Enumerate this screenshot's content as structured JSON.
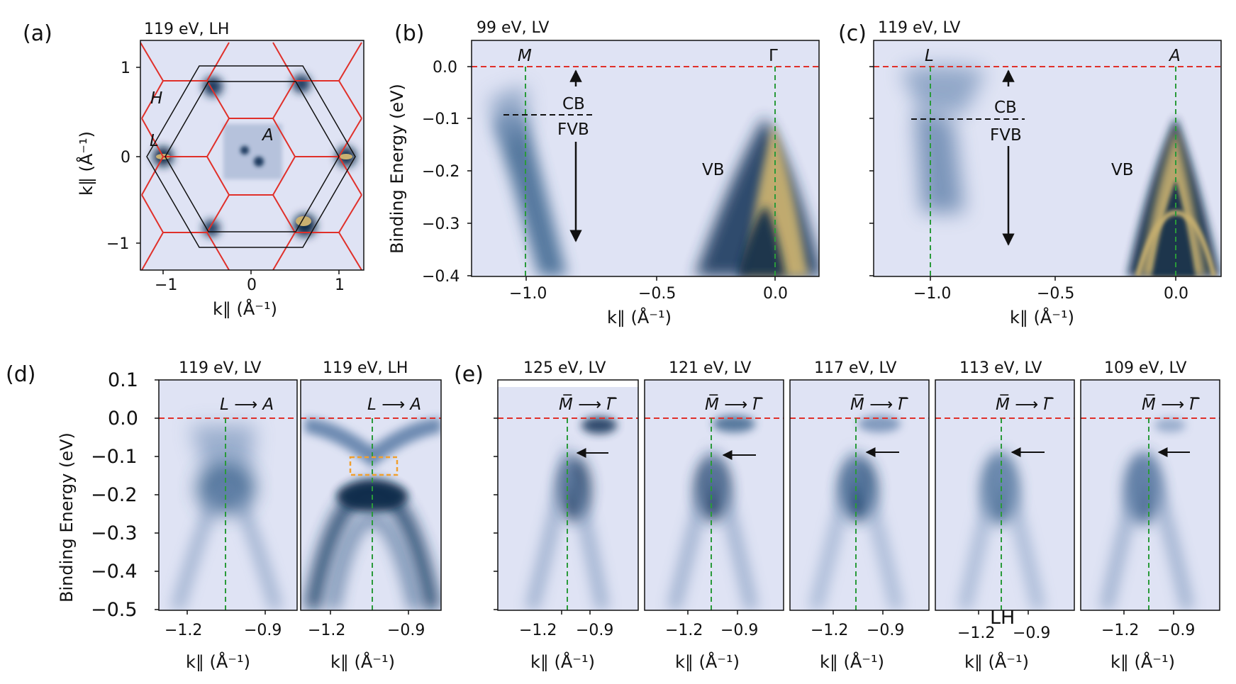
{
  "figure": {
    "panels": {
      "a": {
        "letter": "(a)",
        "title": "119 eV, LH",
        "xticks": [
          "−1",
          "0",
          "1"
        ],
        "yticks": [
          "1",
          "0",
          "−1"
        ],
        "xlabel": "k∥ (Å⁻¹)",
        "ylabel": "k∥ (Å⁻¹)",
        "labels": {
          "H": "H",
          "L": "L",
          "A": "A"
        }
      },
      "b": {
        "letter": "(b)",
        "title": "99 eV, LV",
        "xticks": [
          "−1.0",
          "−0.5",
          "0.0"
        ],
        "yticks": [
          "0.0",
          "−0.1",
          "−0.2",
          "−0.3",
          "−0.4"
        ],
        "xlabel": "k∥ (Å⁻¹)",
        "ylabel": "Binding Energy (eV)",
        "point_left": "M",
        "point_right": "Γ",
        "cb": "CB",
        "fvb": "FVB",
        "vb": "VB"
      },
      "c": {
        "letter": "(c)",
        "title": "119 eV, LV",
        "xticks": [
          "−1.0",
          "−0.5",
          "0.0"
        ],
        "xlabel": "k∥ (Å⁻¹)",
        "point_left": "L",
        "point_right": "A",
        "cb": "CB",
        "fvb": "FVB",
        "vb": "VB"
      },
      "d": {
        "letter": "(d)",
        "ylabel": "Binding Energy (eV)",
        "yticks": [
          "0.1",
          "0.0",
          "−0.1",
          "−0.2",
          "−0.3",
          "−0.4",
          "−0.5"
        ],
        "subpanels": [
          {
            "title": "119 eV, LV",
            "direction": "L ⟶ A",
            "xticks": [
              "−1.2",
              "−0.9"
            ],
            "xlabel": "k∥ (Å⁻¹)"
          },
          {
            "title": "119 eV, LH",
            "direction": "L ⟶ A",
            "xticks": [
              "−1.2",
              "−0.9"
            ],
            "xlabel": "k∥ (Å⁻¹)"
          }
        ]
      },
      "e": {
        "letter": "(e)",
        "subpanels": [
          {
            "title": "125 eV, LV",
            "direction": "M̅ ⟶ Γ̅",
            "xticks": [
              "−1.2",
              "−0.9"
            ],
            "xlabel": "k∥ (Å⁻¹)"
          },
          {
            "title": "121 eV, LV",
            "direction": "M̅ ⟶ Γ̅",
            "xticks": [
              "−1.2",
              "−0.9"
            ],
            "xlabel": "k∥ (Å⁻¹)"
          },
          {
            "title": "117 eV, LV",
            "direction": "M̅ ⟶ Γ̅",
            "xticks": [
              "−1.2",
              "−0.9"
            ],
            "xlabel": "k∥ (Å⁻¹)"
          },
          {
            "title": "113 eV, LV",
            "direction": "M̅ ⟶ Γ̅",
            "xticks": [
              "−1.2",
              "−0.9"
            ],
            "xlabel": "k∥ (Å⁻¹)",
            "stray": "LH"
          },
          {
            "title": "109 eV, LV",
            "direction": "M̅ ⟶ Γ̅",
            "xticks": [
              "−1.2",
              "−0.9"
            ],
            "xlabel": "k∥ (Å⁻¹)"
          }
        ]
      }
    },
    "colors": {
      "background": "#dfe3f4",
      "fermi_line": "#e0302a",
      "k_line": "#2a9a3a",
      "bz_boundary": "#e0302a",
      "box": "#f0a030",
      "band_dark": "#0d2a48",
      "band_bright": "#c8b070"
    }
  }
}
